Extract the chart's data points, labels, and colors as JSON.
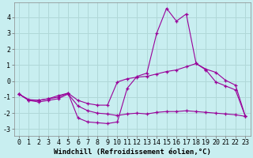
{
  "background_color": "#c8eef0",
  "grid_color": "#b0d8d8",
  "line_color": "#990099",
  "xlabel": "Windchill (Refroidissement éolien,°C)",
  "xlabel_fontsize": 6.5,
  "tick_fontsize": 6,
  "xlim": [
    -0.5,
    23.5
  ],
  "ylim": [
    -3.4,
    4.9
  ],
  "yticks": [
    -3,
    -2,
    -1,
    0,
    1,
    2,
    3,
    4
  ],
  "xticks": [
    0,
    1,
    2,
    3,
    4,
    5,
    6,
    7,
    8,
    9,
    10,
    11,
    12,
    13,
    14,
    15,
    16,
    17,
    18,
    19,
    20,
    21,
    22,
    23
  ],
  "line1_x": [
    0,
    1,
    2,
    3,
    4,
    5,
    6,
    7,
    8,
    9,
    10,
    11,
    12,
    13,
    14,
    15,
    16,
    17,
    18,
    19,
    20,
    21,
    22,
    23
  ],
  "line1_y": [
    -0.8,
    -1.2,
    -1.3,
    -1.2,
    -1.1,
    -0.8,
    -1.55,
    -1.85,
    -2.0,
    -2.05,
    -2.15,
    -2.05,
    -2.0,
    -2.05,
    -1.95,
    -1.9,
    -1.9,
    -1.85,
    -1.9,
    -1.95,
    -2.0,
    -2.05,
    -2.1,
    -2.2
  ],
  "line2_x": [
    0,
    1,
    2,
    3,
    4,
    5,
    6,
    7,
    8,
    9,
    10,
    11,
    12,
    13,
    14,
    15,
    16,
    17,
    18,
    19,
    20,
    21,
    22,
    23
  ],
  "line2_y": [
    -0.8,
    -1.2,
    -1.2,
    -1.1,
    -1.0,
    -0.75,
    -2.3,
    -2.55,
    -2.6,
    -2.65,
    -2.55,
    -0.45,
    0.3,
    0.5,
    3.0,
    4.55,
    3.75,
    4.2,
    1.1,
    0.7,
    -0.05,
    -0.3,
    -0.55,
    -2.2
  ],
  "line3_x": [
    0,
    1,
    2,
    3,
    4,
    5,
    6,
    7,
    8,
    9,
    10,
    11,
    12,
    13,
    14,
    15,
    16,
    17,
    18,
    19,
    20,
    21,
    22,
    23
  ],
  "line3_y": [
    -0.8,
    -1.15,
    -1.2,
    -1.1,
    -0.9,
    -0.75,
    -1.2,
    -1.4,
    -1.5,
    -1.5,
    -0.05,
    0.15,
    0.25,
    0.3,
    0.45,
    0.6,
    0.7,
    0.9,
    1.1,
    0.75,
    0.55,
    0.05,
    -0.25,
    -2.2
  ]
}
